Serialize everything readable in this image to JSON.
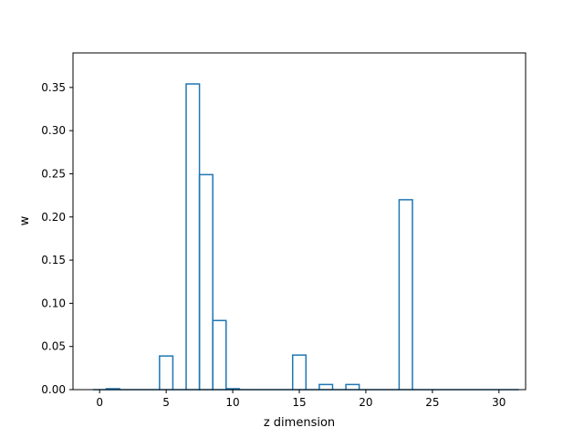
{
  "chart_data": {
    "type": "bar",
    "style": "step-histogram",
    "xlabel": "z dimension",
    "ylabel": "w",
    "xlim": [
      -2,
      32
    ],
    "ylim": [
      0,
      0.39
    ],
    "xticks": [
      0,
      5,
      10,
      15,
      20,
      25,
      30
    ],
    "xtick_labels": [
      "0",
      "5",
      "10",
      "15",
      "20",
      "25",
      "30"
    ],
    "yticks": [
      0.0,
      0.05,
      0.1,
      0.15,
      0.2,
      0.25,
      0.3,
      0.35
    ],
    "ytick_labels": [
      "0.00",
      "0.05",
      "0.10",
      "0.15",
      "0.20",
      "0.25",
      "0.30",
      "0.35"
    ],
    "grid": false,
    "line_color": "#1f77b4",
    "series": [
      {
        "x": [
          0,
          1,
          2,
          3,
          4,
          5,
          6,
          7,
          8,
          9,
          10,
          11,
          12,
          13,
          14,
          15,
          16,
          17,
          18,
          19,
          20,
          21,
          22,
          23,
          24,
          25,
          26,
          27,
          28,
          29,
          30,
          31
        ],
        "values": [
          0,
          0.001,
          0,
          0,
          0,
          0.039,
          0,
          0.354,
          0.249,
          0.08,
          0.001,
          0,
          0,
          0,
          0,
          0.04,
          0,
          0.006,
          0,
          0.006,
          0,
          0,
          0,
          0.22,
          0,
          0,
          0,
          0,
          0,
          0,
          0,
          0
        ]
      }
    ]
  }
}
